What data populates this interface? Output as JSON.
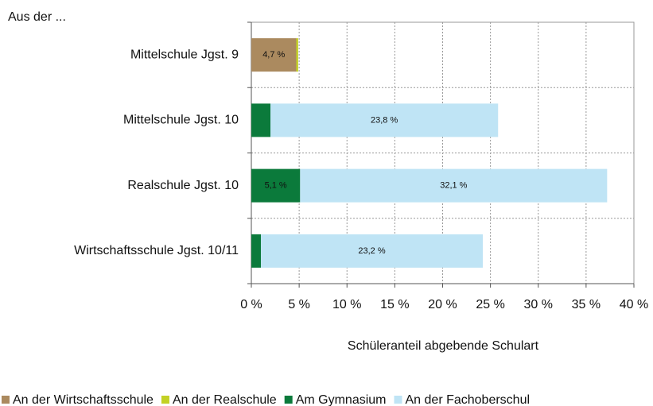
{
  "chart_data": {
    "type": "stacked-barh",
    "annotation": "Aus der ...",
    "x_label": "Schüleranteil abgebende Schulart",
    "categories": [
      "Mittelschule  Jgst. 9",
      "Mittelschule Jgst. 10",
      "Realschule Jgst. 10",
      "Wirtschaftsschule Jgst. 10/11"
    ],
    "series": [
      {
        "name": "An der Wirtschaftsschule",
        "color": "#ab8a5f",
        "values": [
          4.7,
          null,
          null,
          null
        ],
        "value_labels": [
          "4,7 %",
          null,
          null,
          null
        ]
      },
      {
        "name": "An der Realschule",
        "color": "#c3d125",
        "values": [
          0.2,
          null,
          null,
          null
        ],
        "value_labels": [
          null,
          null,
          null,
          null
        ]
      },
      {
        "name": "Am Gymnasium",
        "color": "#0b7a3b",
        "values": [
          null,
          2.0,
          5.1,
          1.0
        ],
        "value_labels": [
          null,
          null,
          "5,1 %",
          null
        ]
      },
      {
        "name": "An der Fachoberschul",
        "color": "#bfe4f5",
        "values": [
          null,
          23.8,
          32.1,
          23.2
        ],
        "value_labels": [
          null,
          "23,8 %",
          "32,1 %",
          "23,2 %"
        ]
      }
    ],
    "xlim": [
      0,
      40
    ],
    "xticks": [
      {
        "value": 0,
        "label": "0 %"
      },
      {
        "value": 5,
        "label": "5 %"
      },
      {
        "value": 10,
        "label": "10 %"
      },
      {
        "value": 15,
        "label": "15 %"
      },
      {
        "value": 20,
        "label": "20 %"
      },
      {
        "value": 25,
        "label": "25 %"
      },
      {
        "value": 30,
        "label": "30 %"
      },
      {
        "value": 35,
        "label": "35 %"
      },
      {
        "value": 40,
        "label": "40 %"
      }
    ],
    "grid": true
  }
}
